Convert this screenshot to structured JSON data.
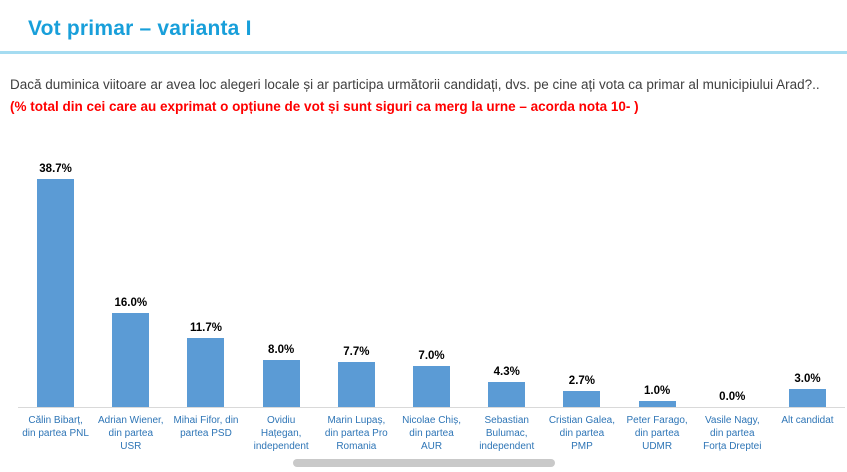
{
  "header": {
    "title": "Vot primar – varianta I"
  },
  "question": {
    "normal": "Dacă duminica viitoare ar avea loc alegeri locale și ar participa următorii candidați, dvs. pe cine ați vota ca primar al municipiului Arad?.. ",
    "highlight": "(% total din cei care au exprimat o opțiune de vot și sunt siguri ca merg la urne – acorda nota 10- )"
  },
  "chart_data": {
    "type": "bar",
    "title": "Vot primar – varianta I",
    "categories": [
      "Călin Bibarț, din partea PNL",
      "Adrian Wiener, din partea USR",
      "Mihai Fifor, din partea PSD",
      "Ovidiu Hațegan, independent",
      "Marin Lupaș, din partea Pro Romania",
      "Nicolae Chiș, din partea AUR",
      "Sebastian Bulumac, independent",
      "Cristian Galea, din partea PMP",
      "Peter Farago, din partea UDMR",
      "Vasile Nagy, din partea Forța Dreptei",
      "Alt candidat"
    ],
    "values": [
      38.7,
      16.0,
      11.7,
      8.0,
      7.7,
      7.0,
      4.3,
      2.7,
      1.0,
      0.0,
      3.0
    ],
    "value_labels": [
      "38.7%",
      "16.0%",
      "11.7%",
      "8.0%",
      "7.7%",
      "7.0%",
      "4.3%",
      "2.7%",
      "1.0%",
      "0.0%",
      "3.0%"
    ],
    "xlabel": "",
    "ylabel": "",
    "ylim": [
      0,
      40
    ],
    "grid": false,
    "legend": false,
    "bar_color": "#5B9BD5",
    "value_label_color": "#000000",
    "category_label_color": "#2E75B6"
  },
  "colors": {
    "title": "#189FDA",
    "divider": "#A5DCF1",
    "question_text": "#3F3F3F",
    "question_highlight": "#FF0000",
    "axis_line": "#D9D9D9",
    "scrollbar_thumb": "#C9C9C9"
  }
}
